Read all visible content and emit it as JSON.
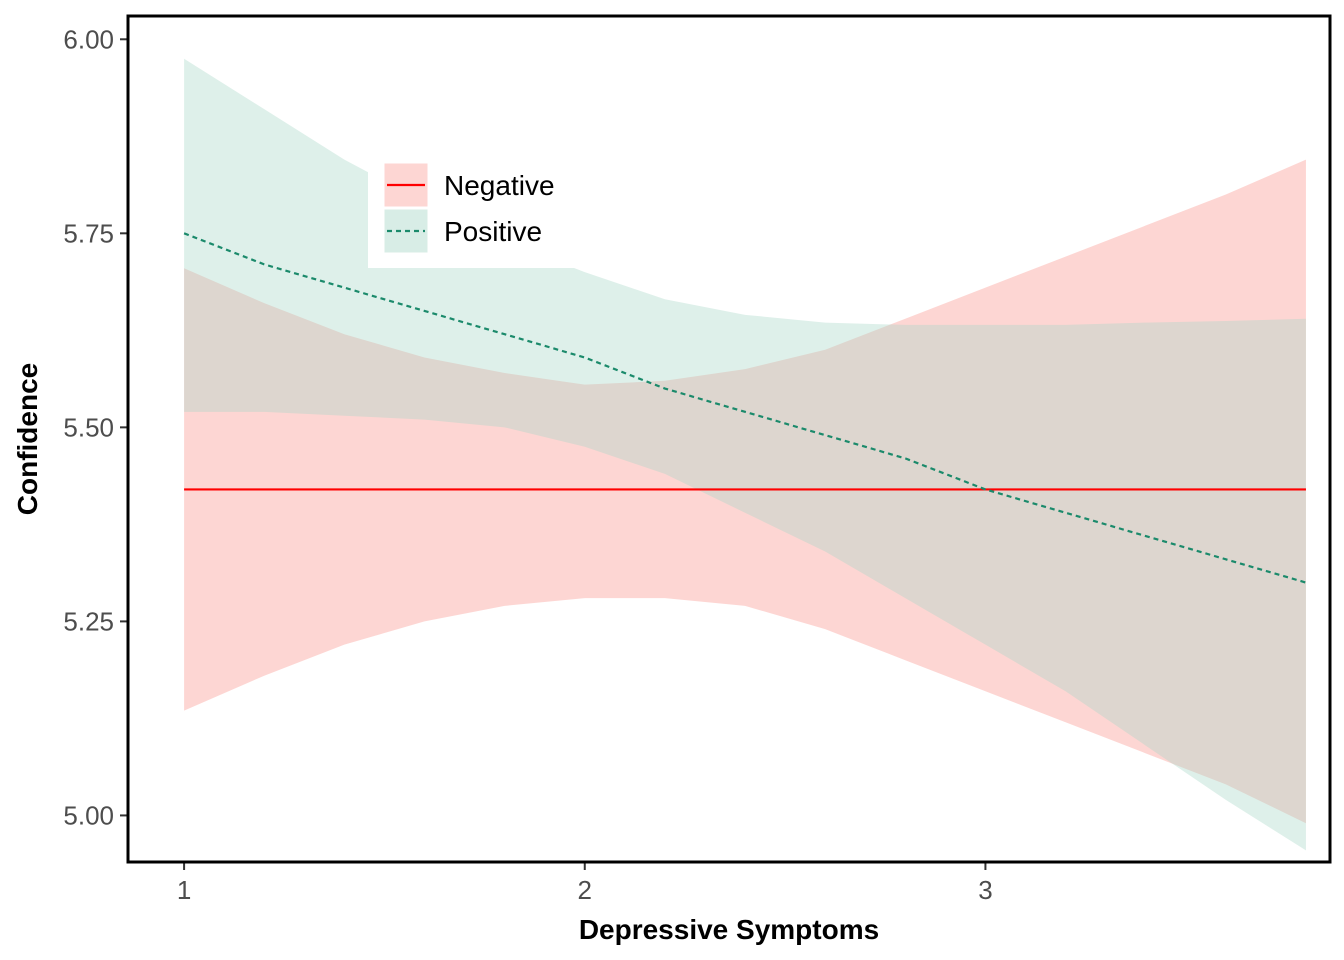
{
  "chart_data": {
    "type": "line",
    "xlabel": "Depressive Symptoms",
    "ylabel": "Confidence",
    "xlim": [
      0.86,
      3.86
    ],
    "ylim": [
      4.94,
      6.03
    ],
    "x_ticks": [
      1,
      2,
      3
    ],
    "x_tick_labels": [
      "1",
      "2",
      "3"
    ],
    "y_ticks": [
      5.0,
      5.25,
      5.5,
      5.75,
      6.0
    ],
    "y_tick_labels": [
      "5.00",
      "5.25",
      "5.50",
      "5.75",
      "6.00"
    ],
    "grid": false,
    "legend_position": "top-left",
    "x": [
      1.0,
      1.2,
      1.4,
      1.6,
      1.8,
      2.0,
      2.2,
      2.4,
      2.6,
      2.8,
      3.0,
      3.2,
      3.4,
      3.6,
      3.8
    ],
    "series": [
      {
        "name": "Negative",
        "color": "#ff0000",
        "fill_color": "#f8766d",
        "line_style": "solid",
        "values": [
          5.42,
          5.42,
          5.42,
          5.42,
          5.42,
          5.42,
          5.42,
          5.42,
          5.42,
          5.42,
          5.42,
          5.42,
          5.42,
          5.42,
          5.42
        ],
        "lower": [
          5.135,
          5.18,
          5.22,
          5.25,
          5.27,
          5.28,
          5.28,
          5.27,
          5.24,
          5.2,
          5.16,
          5.12,
          5.08,
          5.04,
          4.99
        ],
        "upper": [
          5.705,
          5.66,
          5.62,
          5.59,
          5.57,
          5.555,
          5.56,
          5.575,
          5.6,
          5.64,
          5.68,
          5.72,
          5.76,
          5.8,
          5.845
        ]
      },
      {
        "name": "Positive",
        "color": "#1b8a6b",
        "fill_color": "#a8d8c8",
        "line_style": "dashed",
        "values": [
          5.75,
          5.71,
          5.68,
          5.65,
          5.62,
          5.59,
          5.55,
          5.52,
          5.49,
          5.46,
          5.42,
          5.39,
          5.36,
          5.33,
          5.3
        ],
        "lower": [
          5.52,
          5.52,
          5.515,
          5.51,
          5.5,
          5.475,
          5.44,
          5.39,
          5.34,
          5.28,
          5.22,
          5.16,
          5.09,
          5.02,
          4.955
        ],
        "upper": [
          5.975,
          5.91,
          5.845,
          5.79,
          5.74,
          5.7,
          5.665,
          5.645,
          5.635,
          5.632,
          5.632,
          5.632,
          5.635,
          5.637,
          5.64
        ]
      }
    ]
  }
}
